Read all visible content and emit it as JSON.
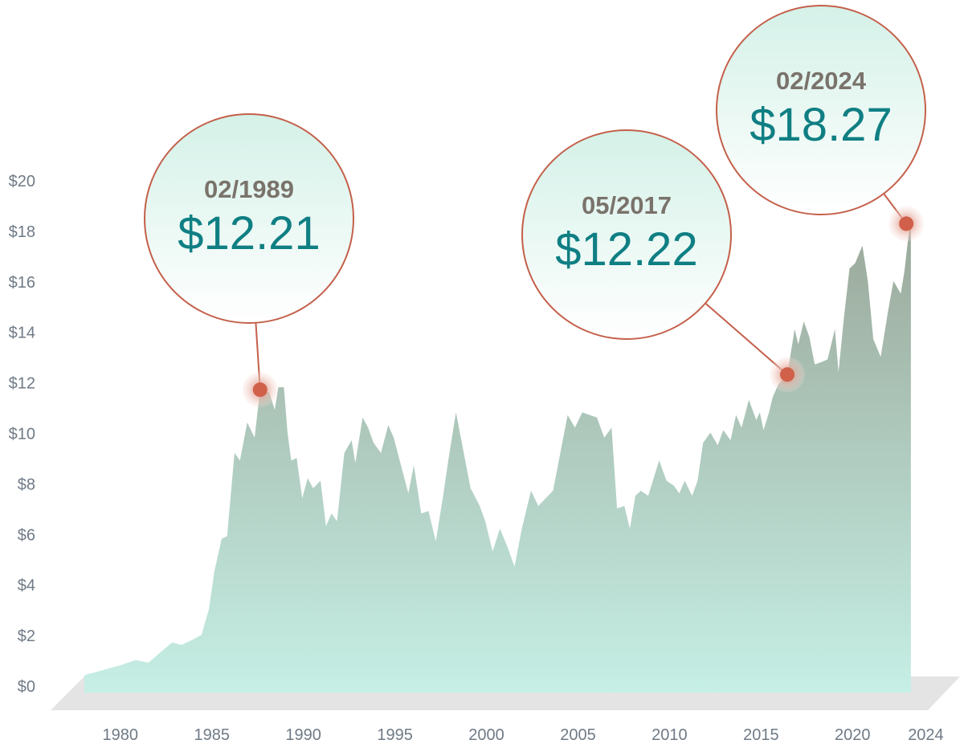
{
  "chart_data": {
    "type": "area",
    "title": "",
    "xlabel": "",
    "ylabel": "",
    "xlim": [
      1979,
      2024.2
    ],
    "ylim": [
      0,
      20
    ],
    "x_ticks": [
      {
        "value": 1980,
        "label": "1980"
      },
      {
        "value": 1985,
        "label": "1985"
      },
      {
        "value": 1990,
        "label": "1990"
      },
      {
        "value": 1995,
        "label": "1995"
      },
      {
        "value": 2000,
        "label": "2000"
      },
      {
        "value": 2005,
        "label": "2005"
      },
      {
        "value": 2010,
        "label": "2010"
      },
      {
        "value": 2015,
        "label": "2015"
      },
      {
        "value": 2020,
        "label": "2020"
      },
      {
        "value": 2024,
        "label": "2024"
      }
    ],
    "y_ticks": [
      {
        "value": 0,
        "label": "$0"
      },
      {
        "value": 2,
        "label": "$2"
      },
      {
        "value": 4,
        "label": "$4"
      },
      {
        "value": 6,
        "label": "$6"
      },
      {
        "value": 8,
        "label": "$8"
      },
      {
        "value": 10,
        "label": "$10"
      },
      {
        "value": 12,
        "label": "$12"
      },
      {
        "value": 14,
        "label": "$14"
      },
      {
        "value": 16,
        "label": "$16"
      },
      {
        "value": 18,
        "label": "$18"
      },
      {
        "value": 20,
        "label": "$20"
      }
    ],
    "colors": {
      "area_bottom": "#c6efe5",
      "area_top": "#9aa89a",
      "marker": "#d0604a",
      "callout_stroke": "#c4604a",
      "callout_fill": "#d4f1e8",
      "date_text": "#7a736b",
      "value_text": "#0f7f83",
      "floor": "#e4e4e4",
      "tick_text": "#6f7a86"
    },
    "series": [
      {
        "x": [
          1979.0,
          1980.0,
          1981.0,
          1981.8,
          1982.5,
          1983.3,
          1983.8,
          1984.3,
          1984.9,
          1985.4,
          1985.8,
          1986.1,
          1986.5,
          1986.8,
          1987.2,
          1987.5,
          1987.9,
          1988.3,
          1988.6,
          1989.1,
          1989.4,
          1989.6,
          1989.9,
          1990.1,
          1990.3,
          1990.6,
          1990.9,
          1991.2,
          1991.5,
          1991.9,
          1992.2,
          1992.5,
          1992.8,
          1993.2,
          1993.6,
          1993.8,
          1994.2,
          1994.5,
          1994.8,
          1995.2,
          1995.6,
          1995.9,
          1996.3,
          1996.7,
          1997.0,
          1997.4,
          1997.8,
          1998.2,
          1998.6,
          1998.9,
          1999.3,
          1999.7,
          2000.1,
          2000.6,
          2000.9,
          2001.3,
          2001.7,
          2002.1,
          2002.5,
          2002.9,
          2003.4,
          2003.8,
          2004.2,
          2004.6,
          2005.0,
          2005.4,
          2005.8,
          2006.2,
          2006.6,
          2007.0,
          2007.4,
          2007.8,
          2008.1,
          2008.5,
          2008.8,
          2009.1,
          2009.4,
          2009.8,
          2010.1,
          2010.4,
          2010.8,
          2011.2,
          2011.5,
          2011.8,
          2012.2,
          2012.5,
          2012.8,
          2013.2,
          2013.6,
          2013.9,
          2014.3,
          2014.6,
          2014.9,
          2015.3,
          2015.7,
          2015.9,
          2016.1,
          2016.4,
          2016.6,
          2016.9,
          2017.4,
          2017.8,
          2018.0,
          2018.3,
          2018.6,
          2018.9,
          2019.3,
          2019.6,
          2020.0,
          2020.2,
          2020.5,
          2020.8,
          2021.1,
          2021.5,
          2021.8,
          2022.1,
          2022.5,
          2022.9,
          2023.2,
          2023.6,
          2023.8,
          2024.1,
          2024.15
        ],
        "values": [
          0.4,
          0.6,
          0.8,
          1.0,
          0.9,
          1.4,
          1.7,
          1.6,
          1.8,
          2.0,
          3.0,
          4.5,
          5.8,
          5.9,
          9.2,
          8.9,
          10.4,
          9.8,
          11.7,
          11.6,
          10.9,
          11.8,
          11.8,
          10.0,
          8.9,
          9.0,
          7.4,
          8.2,
          7.8,
          8.1,
          6.3,
          6.8,
          6.5,
          9.2,
          9.7,
          8.8,
          10.6,
          10.2,
          9.6,
          9.2,
          10.3,
          9.8,
          8.7,
          7.6,
          8.7,
          6.8,
          6.9,
          5.7,
          7.5,
          9.0,
          10.8,
          9.3,
          7.8,
          7.1,
          6.5,
          5.3,
          6.2,
          5.5,
          4.7,
          6.2,
          7.7,
          7.1,
          7.4,
          7.7,
          9.2,
          10.7,
          10.2,
          10.8,
          10.7,
          10.6,
          9.8,
          10.2,
          7.0,
          7.1,
          6.2,
          7.5,
          7.7,
          7.5,
          8.2,
          8.9,
          8.1,
          7.9,
          7.6,
          8.1,
          7.5,
          8.1,
          9.6,
          10.0,
          9.5,
          10.1,
          9.7,
          10.7,
          10.2,
          11.3,
          10.5,
          10.8,
          10.1,
          10.8,
          11.4,
          11.9,
          12.3,
          14.1,
          13.5,
          14.4,
          13.8,
          12.7,
          12.8,
          12.9,
          14.1,
          12.4,
          14.6,
          16.5,
          16.7,
          17.4,
          16.0,
          13.7,
          13.0,
          14.8,
          16.0,
          15.5,
          16.4,
          18.3,
          18.3
        ]
      }
    ],
    "annotations": [
      {
        "date": "02/1989",
        "value_label": "$12.21",
        "x": 1988.6,
        "y": 11.7
      },
      {
        "date": "05/2017",
        "value_label": "$12.22",
        "x": 2017.4,
        "y": 12.3
      },
      {
        "date": "02/2024",
        "value_label": "$18.27",
        "x": 2023.9,
        "y": 18.27
      }
    ]
  }
}
